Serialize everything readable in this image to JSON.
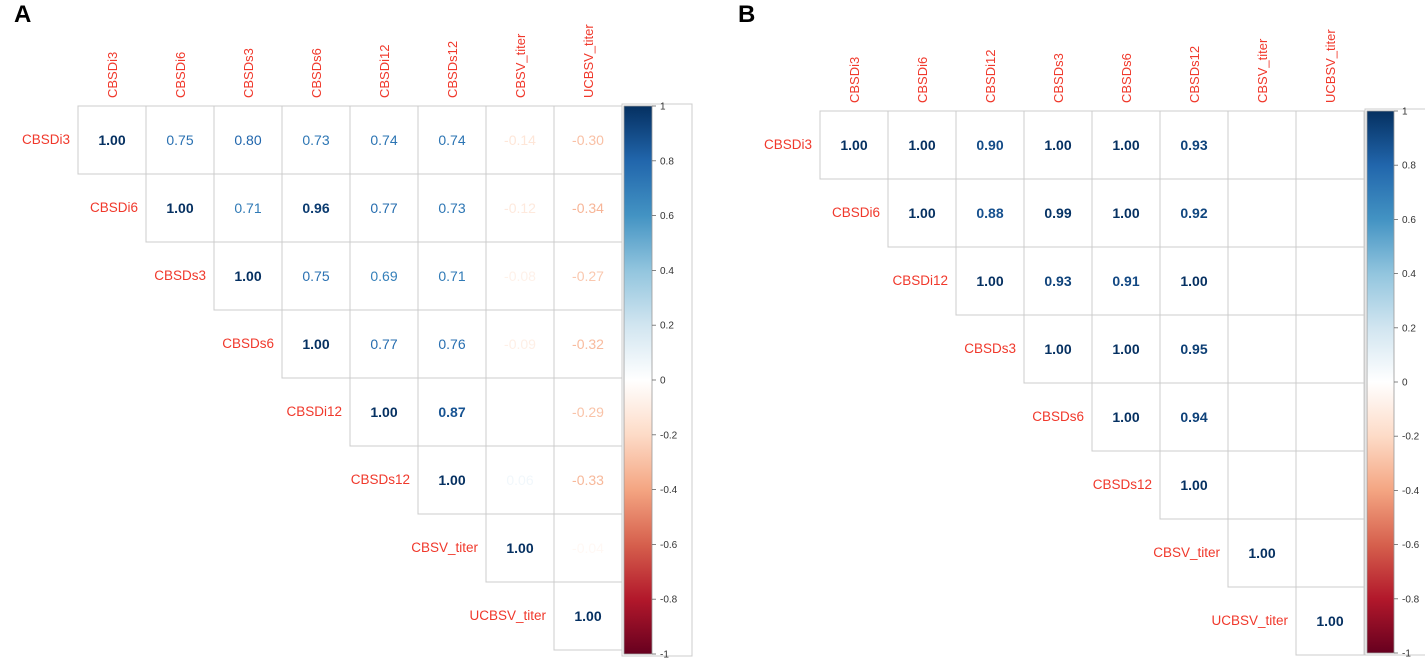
{
  "chart_data": [
    {
      "type": "heatmap",
      "panel_label": "A",
      "variables": [
        "CBSDi3",
        "CBSDi6",
        "CBSDs3",
        "CBSDs6",
        "CBSDi12",
        "CBSDs12",
        "CBSV_titer",
        "UCBSV_titer"
      ],
      "matrix": [
        [
          1.0,
          0.75,
          0.8,
          0.73,
          0.74,
          0.74,
          -0.14,
          -0.3
        ],
        [
          null,
          1.0,
          0.71,
          0.96,
          0.77,
          0.73,
          -0.12,
          -0.34
        ],
        [
          null,
          null,
          1.0,
          0.75,
          0.69,
          0.71,
          -0.08,
          -0.27
        ],
        [
          null,
          null,
          null,
          1.0,
          0.77,
          0.76,
          -0.09,
          -0.32
        ],
        [
          null,
          null,
          null,
          null,
          1.0,
          0.87,
          0.0,
          -0.29
        ],
        [
          null,
          null,
          null,
          null,
          null,
          1.0,
          0.06,
          -0.33
        ],
        [
          null,
          null,
          null,
          null,
          null,
          null,
          1.0,
          -0.04
        ],
        [
          null,
          null,
          null,
          null,
          null,
          null,
          null,
          1.0
        ]
      ],
      "cell_labels": [
        [
          "1.00",
          "0.75",
          "0.80",
          "0.73",
          "0.74",
          "0.74",
          "-0.14",
          "-0.30"
        ],
        [
          null,
          "1.00",
          "0.71",
          "0.96",
          "0.77",
          "0.73",
          "-0.12",
          "-0.34"
        ],
        [
          null,
          null,
          "1.00",
          "0.75",
          "0.69",
          "0.71",
          "-0.08",
          "-0.27"
        ],
        [
          null,
          null,
          null,
          "1.00",
          "0.77",
          "0.76",
          "-0.09",
          "-0.32"
        ],
        [
          null,
          null,
          null,
          null,
          "1.00",
          "0.87",
          "0.00",
          "-0.29"
        ],
        [
          null,
          null,
          null,
          null,
          null,
          "1.00",
          "0.06",
          "-0.33"
        ],
        [
          null,
          null,
          null,
          null,
          null,
          null,
          "1.00",
          "-0.04"
        ],
        [
          null,
          null,
          null,
          null,
          null,
          null,
          null,
          "1.00"
        ]
      ],
      "colorbar": {
        "range": [
          -1,
          1
        ],
        "ticks": [
          "1",
          "0.8",
          "0.6",
          "0.4",
          "0.2",
          "0",
          "-0.2",
          "-0.4",
          "-0.6",
          "-0.8",
          "-1"
        ]
      }
    },
    {
      "type": "heatmap",
      "panel_label": "B",
      "variables": [
        "CBSDi3",
        "CBSDi6",
        "CBSDi12",
        "CBSDs3",
        "CBSDs6",
        "CBSDs12",
        "CBSV_titer",
        "UCBSV_titer"
      ],
      "matrix": [
        [
          1.0,
          1.0,
          0.9,
          1.0,
          1.0,
          0.93,
          null,
          null
        ],
        [
          null,
          1.0,
          0.88,
          0.99,
          1.0,
          0.92,
          null,
          null
        ],
        [
          null,
          null,
          1.0,
          0.93,
          0.91,
          1.0,
          null,
          null
        ],
        [
          null,
          null,
          null,
          1.0,
          1.0,
          0.95,
          null,
          null
        ],
        [
          null,
          null,
          null,
          null,
          1.0,
          0.94,
          null,
          null
        ],
        [
          null,
          null,
          null,
          null,
          null,
          1.0,
          null,
          null
        ],
        [
          null,
          null,
          null,
          null,
          null,
          null,
          1.0,
          null
        ],
        [
          null,
          null,
          null,
          null,
          null,
          null,
          null,
          1.0
        ]
      ],
      "cell_labels": [
        [
          "1.00",
          "1.00",
          "0.90",
          "1.00",
          "1.00",
          "0.93",
          null,
          null
        ],
        [
          null,
          "1.00",
          "0.88",
          "0.99",
          "1.00",
          "0.92",
          null,
          null
        ],
        [
          null,
          null,
          "1.00",
          "0.93",
          "0.91",
          "1.00",
          null,
          null
        ],
        [
          null,
          null,
          null,
          "1.00",
          "1.00",
          "0.95",
          null,
          null
        ],
        [
          null,
          null,
          null,
          null,
          "1.00",
          "0.94",
          null,
          null
        ],
        [
          null,
          null,
          null,
          null,
          null,
          "1.00",
          null,
          null
        ],
        [
          null,
          null,
          null,
          null,
          null,
          null,
          "1.00",
          null
        ],
        [
          null,
          null,
          null,
          null,
          null,
          null,
          null,
          "1.00"
        ]
      ],
      "colorbar": {
        "range": [
          -1,
          1
        ],
        "ticks": [
          "1",
          "0.8",
          "0.6",
          "0.4",
          "0.2",
          "0",
          "-0.2",
          "-0.4",
          "-0.6",
          "-0.8",
          "-1"
        ]
      }
    }
  ],
  "colors": {
    "label_red": "#f0382b",
    "grid": "#cccccc",
    "scale_stops": [
      "#67001f",
      "#b2182b",
      "#d6604d",
      "#f4a582",
      "#fddbc7",
      "#ffffff",
      "#d1e5f0",
      "#92c5de",
      "#4393c3",
      "#2166ac",
      "#053061"
    ]
  }
}
